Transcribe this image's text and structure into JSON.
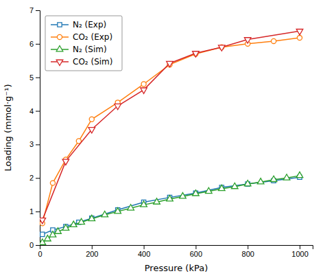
{
  "chart_data": {
    "type": "line",
    "xlabel": "Pressure (kPa)",
    "ylabel": "Loading (mmol·g⁻¹)",
    "xlim": [
      0,
      1050
    ],
    "ylim": [
      0,
      7
    ],
    "xticks": [
      0,
      200,
      400,
      600,
      800,
      1000
    ],
    "yticks": [
      0,
      1,
      2,
      3,
      4,
      5,
      6,
      7
    ],
    "grid": false,
    "legend": "upper left",
    "series": [
      {
        "name": "N₂ (Exp)",
        "marker": "square",
        "x": [
          10,
          50,
          100,
          150,
          200,
          300,
          400,
          500,
          600,
          700,
          800,
          900,
          1000
        ],
        "values": [
          0.32,
          0.45,
          0.55,
          0.68,
          0.8,
          1.05,
          1.28,
          1.42,
          1.55,
          1.72,
          1.82,
          1.92,
          2.02
        ]
      },
      {
        "name": "CO₂ (Exp)",
        "marker": "circle",
        "x": [
          10,
          50,
          100,
          150,
          200,
          300,
          400,
          500,
          600,
          700,
          800,
          900,
          1000
        ],
        "values": [
          0.65,
          1.85,
          2.55,
          3.1,
          3.75,
          4.25,
          4.8,
          5.38,
          5.7,
          5.9,
          6.0,
          6.08,
          6.18
        ]
      },
      {
        "name": "N₂ (Sim)",
        "marker": "triangle-up",
        "x": [
          10,
          30,
          50,
          70,
          100,
          130,
          160,
          200,
          250,
          300,
          350,
          400,
          450,
          500,
          550,
          600,
          650,
          700,
          750,
          800,
          850,
          900,
          950,
          1000
        ],
        "values": [
          0.07,
          0.18,
          0.3,
          0.4,
          0.5,
          0.6,
          0.68,
          0.78,
          0.9,
          1.0,
          1.1,
          1.2,
          1.28,
          1.37,
          1.45,
          1.53,
          1.6,
          1.68,
          1.74,
          1.82,
          1.88,
          1.95,
          2.0,
          2.07
        ]
      },
      {
        "name": "CO₂ (Sim)",
        "marker": "triangle-down",
        "x": [
          10,
          100,
          200,
          300,
          400,
          500,
          600,
          700,
          800,
          1000
        ],
        "values": [
          0.75,
          2.5,
          3.45,
          4.15,
          4.63,
          5.42,
          5.72,
          5.9,
          6.13,
          6.38
        ]
      }
    ]
  }
}
